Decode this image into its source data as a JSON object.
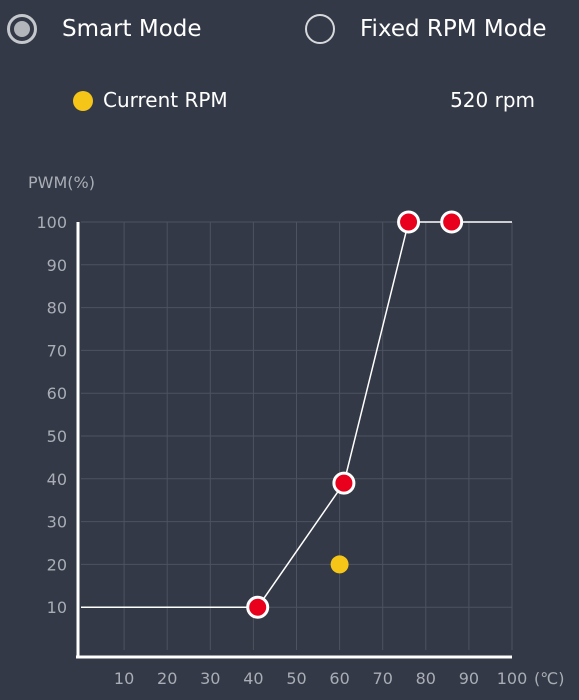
{
  "modes": {
    "smart_label": "Smart Mode",
    "fixed_label": "Fixed RPM Mode",
    "selected": "smart"
  },
  "current_rpm": {
    "label": "Current RPM",
    "value_text": "520 rpm",
    "indicator_color": "#f5c518"
  },
  "colors": {
    "background": "#333946",
    "grid": "#4d5360",
    "curve": "#ffffff",
    "point_fill": "#e8001c",
    "current_dot": "#f5c518"
  },
  "chart_data": {
    "type": "line",
    "title": "",
    "ylabel": "PWM(%)",
    "xlabel": "(℃)",
    "xlim": [
      0,
      100
    ],
    "ylim": [
      0,
      100
    ],
    "x_ticks": [
      10,
      20,
      30,
      40,
      50,
      60,
      70,
      80,
      90,
      100
    ],
    "y_ticks": [
      10,
      20,
      30,
      40,
      50,
      60,
      70,
      80,
      90,
      100
    ],
    "grid": true,
    "curve": [
      {
        "x": 0,
        "y": 10
      },
      {
        "x": 41,
        "y": 10
      },
      {
        "x": 61,
        "y": 39
      },
      {
        "x": 76,
        "y": 100
      },
      {
        "x": 86,
        "y": 100
      },
      {
        "x": 100,
        "y": 100
      }
    ],
    "control_points": [
      {
        "x": 41,
        "y": 10
      },
      {
        "x": 61,
        "y": 39
      },
      {
        "x": 76,
        "y": 100
      },
      {
        "x": 86,
        "y": 100
      }
    ],
    "current_point": {
      "x": 60,
      "y": 20
    }
  }
}
